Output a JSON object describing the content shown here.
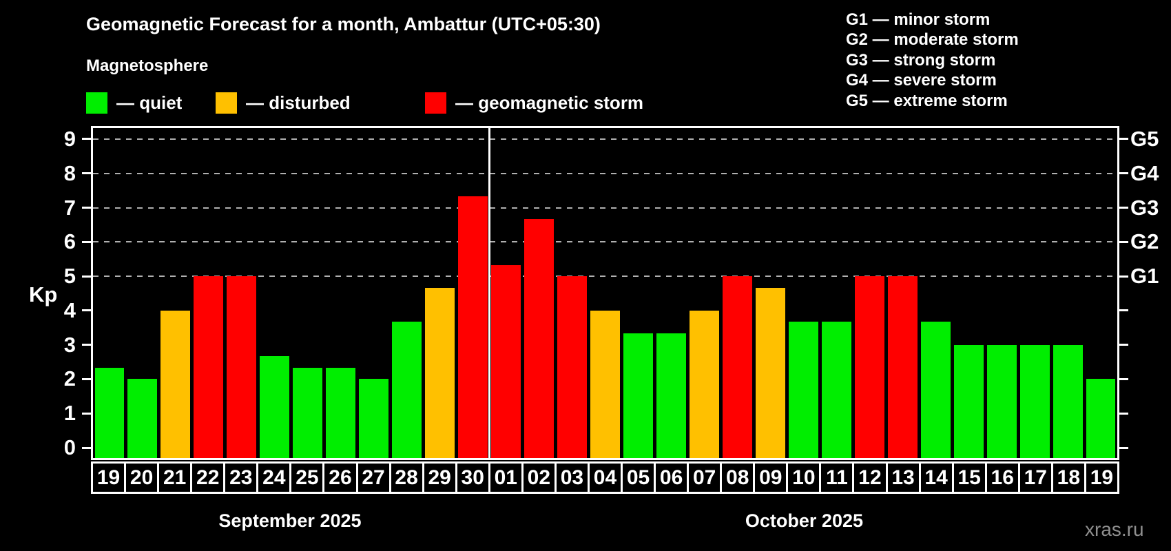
{
  "title": "Geomagnetic Forecast for a month, Ambattur (UTC+05:30)",
  "subtitle": "Magnetosphere",
  "legend": [
    {
      "key": "quiet",
      "label": "— quiet"
    },
    {
      "key": "disturbed",
      "label": "— disturbed"
    },
    {
      "key": "storm",
      "label": "— geomagnetic storm"
    }
  ],
  "g_scale_legend": [
    "G1 — minor storm",
    "G2 — moderate storm",
    "G3 — strong storm",
    "G4 — severe storm",
    "G5 — extreme storm"
  ],
  "watermark": "xras.ru",
  "colors": {
    "quiet": "#00ee00",
    "disturbed": "#ffc000",
    "storm": "#ff0000",
    "axis": "#ffffff",
    "grid": "#b0b0b0",
    "background": "#000000",
    "watermark": "#8f8f8f"
  },
  "chart_data": {
    "type": "bar",
    "ylabel": "Kp",
    "ylim": [
      0,
      9
    ],
    "yticks": [
      0,
      1,
      2,
      3,
      4,
      5,
      6,
      7,
      8,
      9
    ],
    "grid_levels": [
      5,
      6,
      7,
      8,
      9
    ],
    "grid_style": "dashed",
    "legend_position": "top",
    "right_axis": [
      {
        "label": "G1",
        "value": 5
      },
      {
        "label": "G2",
        "value": 6
      },
      {
        "label": "G3",
        "value": 7
      },
      {
        "label": "G4",
        "value": 8
      },
      {
        "label": "G5",
        "value": 9
      }
    ],
    "months": [
      {
        "label": "September 2025",
        "count": 12
      },
      {
        "label": "October 2025",
        "count": 19
      }
    ],
    "categories": [
      "19",
      "20",
      "21",
      "22",
      "23",
      "24",
      "25",
      "26",
      "27",
      "28",
      "29",
      "30",
      "01",
      "02",
      "03",
      "04",
      "05",
      "06",
      "07",
      "08",
      "09",
      "10",
      "11",
      "12",
      "13",
      "14",
      "15",
      "16",
      "17",
      "18",
      "19"
    ],
    "values": [
      2.33,
      2,
      4,
      5,
      5,
      2.67,
      2.33,
      2.33,
      2,
      3.67,
      4.67,
      7.33,
      5.33,
      6.67,
      5,
      4,
      3.33,
      3.33,
      4,
      5,
      4.67,
      3.67,
      3.67,
      5,
      5,
      3.67,
      3,
      3,
      3,
      3,
      2
    ],
    "statuses": [
      "quiet",
      "quiet",
      "disturbed",
      "storm",
      "storm",
      "quiet",
      "quiet",
      "quiet",
      "quiet",
      "quiet",
      "disturbed",
      "storm",
      "storm",
      "storm",
      "storm",
      "disturbed",
      "quiet",
      "quiet",
      "disturbed",
      "storm",
      "disturbed",
      "quiet",
      "quiet",
      "storm",
      "storm",
      "quiet",
      "quiet",
      "quiet",
      "quiet",
      "quiet",
      "quiet"
    ]
  }
}
